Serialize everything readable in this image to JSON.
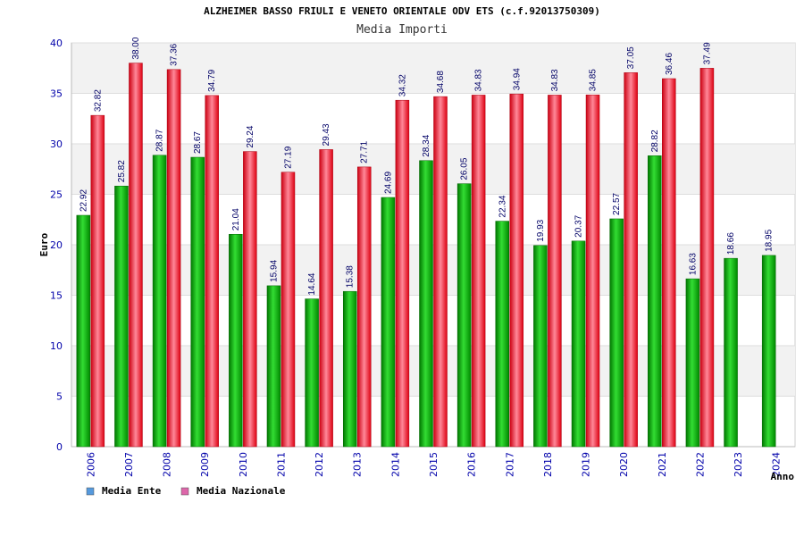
{
  "chart_data": {
    "type": "bar",
    "title": "ALZHEIMER BASSO FRIULI E VENETO ORIENTALE ODV ETS (c.f.92013750309)",
    "subtitle": "Media Importi",
    "xlabel": "Anno",
    "ylabel": "Euro",
    "ylim": [
      0,
      40
    ],
    "yticks": [
      "0",
      "5",
      "10",
      "15",
      "20",
      "25",
      "30",
      "35",
      "40"
    ],
    "grid": true,
    "legend_position": "bottom-left",
    "categories": [
      "2006",
      "2007",
      "2008",
      "2009",
      "2010",
      "2011",
      "2012",
      "2013",
      "2014",
      "2015",
      "2016",
      "2017",
      "2018",
      "2019",
      "2020",
      "2021",
      "2022",
      "2023",
      "2024"
    ],
    "series": [
      {
        "name": "Media Ente",
        "color": "#00aa00",
        "legend_color": "#5599dd",
        "values": [
          22.92,
          25.82,
          28.87,
          28.67,
          21.04,
          15.94,
          14.64,
          15.38,
          24.69,
          28.34,
          26.05,
          22.34,
          19.93,
          20.37,
          22.57,
          28.82,
          16.63,
          18.66,
          18.95
        ],
        "labels": [
          "22.92",
          "25.82",
          "28.87",
          "28.67",
          "21.04",
          "15.94",
          "14.64",
          "15.38",
          "24.69",
          "28.34",
          "26.05",
          "22.34",
          "19.93",
          "20.37",
          "22.57",
          "28.82",
          "16.63",
          "18.66",
          "18.95"
        ]
      },
      {
        "name": "Media Nazionale",
        "color": "#ee1122",
        "legend_color": "#dd66aa",
        "values": [
          32.82,
          38.0,
          37.36,
          34.79,
          29.24,
          27.19,
          29.43,
          27.71,
          34.32,
          34.68,
          34.83,
          34.94,
          34.83,
          34.85,
          37.05,
          36.46,
          37.49,
          null,
          null
        ],
        "labels": [
          "32.82",
          "38.00",
          "37.36",
          "34.79",
          "29.24",
          "27.19",
          "29.43",
          "27.71",
          "34.32",
          "34.68",
          "34.83",
          "34.94",
          "34.83",
          "34.85",
          "37.05",
          "36.46",
          "37.49",
          null,
          null
        ]
      }
    ]
  }
}
